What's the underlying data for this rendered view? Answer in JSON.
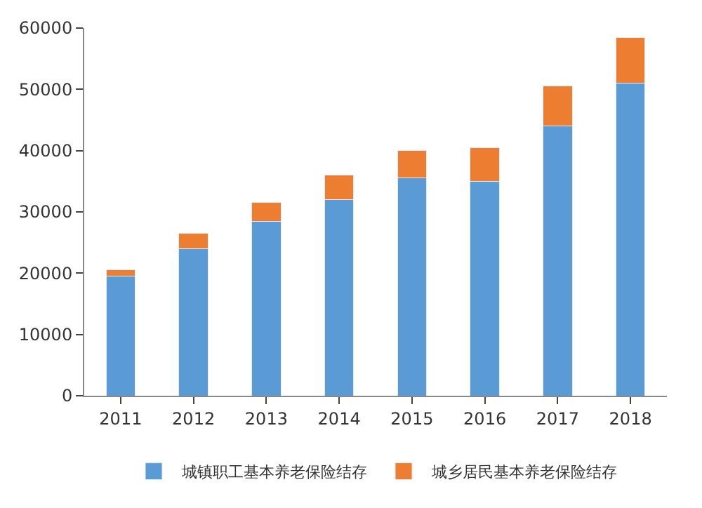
{
  "chart_data": {
    "type": "bar",
    "stacked": true,
    "categories": [
      "2011",
      "2012",
      "2013",
      "2014",
      "2015",
      "2016",
      "2017",
      "2018"
    ],
    "series": [
      {
        "name": "城镇职工基本养老保险结存",
        "color": "#5b9bd5",
        "values": [
          19500,
          24000,
          28500,
          32000,
          35500,
          35000,
          44000,
          51000
        ]
      },
      {
        "name": "城乡居民基本养老保险结存",
        "color": "#ed7d31",
        "values": [
          1000,
          2500,
          3000,
          4000,
          4500,
          5500,
          6500,
          7500
        ]
      }
    ],
    "ylim": [
      0,
      60000
    ],
    "yticks": [
      0,
      10000,
      20000,
      30000,
      40000,
      50000,
      60000
    ],
    "legend": "bottom"
  }
}
